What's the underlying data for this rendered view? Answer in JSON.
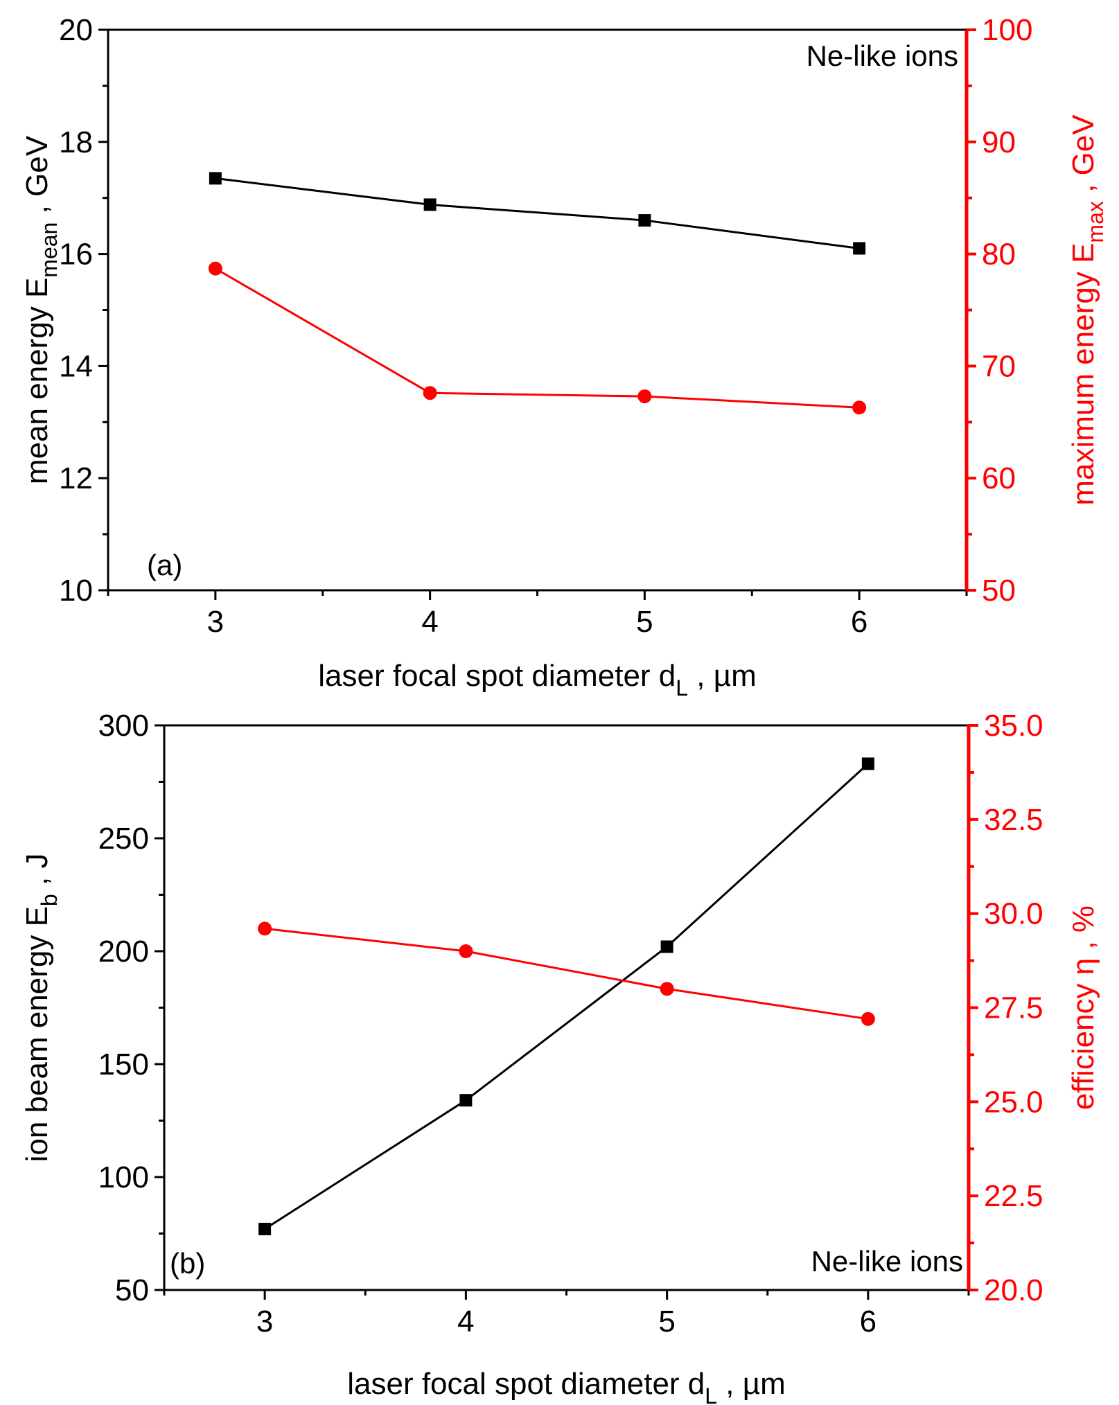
{
  "colors": {
    "primary": "#000000",
    "secondary": "#ff0000"
  },
  "chart_data": [
    {
      "id": "a",
      "type": "line",
      "panel_label": "(a)",
      "annotation": "Ne-like ions",
      "x": [
        3,
        4,
        5,
        6
      ],
      "xlim": [
        2.5,
        6.5
      ],
      "xticks": [
        3,
        4,
        5,
        6
      ],
      "xlabel": {
        "main": "laser focal spot diameter  d",
        "sub": "L",
        "tail": " , µm"
      },
      "ylabel_left": {
        "main": "mean energy E",
        "sub": "mean",
        "tail": " , GeV"
      },
      "ylabel_right": {
        "main": "maximum energy E",
        "sub": "max",
        "tail": " , GeV"
      },
      "ylim_left": [
        10,
        20
      ],
      "yticks_left": [
        10,
        12,
        14,
        16,
        18,
        20
      ],
      "ylim_right": [
        50,
        100
      ],
      "yticks_right": [
        50,
        60,
        70,
        80,
        90,
        100
      ],
      "series": [
        {
          "name": "mean energy",
          "axis": "left",
          "marker": "square",
          "color": "#000000",
          "values": [
            17.35,
            16.88,
            16.6,
            16.1
          ]
        },
        {
          "name": "maximum energy",
          "axis": "right",
          "marker": "circle",
          "color": "#ff0000",
          "values": [
            78.7,
            67.6,
            67.3,
            66.3
          ]
        }
      ]
    },
    {
      "id": "b",
      "type": "line",
      "panel_label": "(b)",
      "annotation": "Ne-like ions",
      "x": [
        3,
        4,
        5,
        6
      ],
      "xlim": [
        2.5,
        6.5
      ],
      "xticks": [
        3,
        4,
        5,
        6
      ],
      "xlabel": {
        "main": "laser focal spot diameter d",
        "sub": "L",
        "tail": " , µm"
      },
      "ylabel_left": {
        "main": "ion  beam energy  E",
        "sub": "b",
        "tail": "  , J"
      },
      "ylabel_right": {
        "main": "efficiency η , %",
        "sub": "",
        "tail": ""
      },
      "ylim_left": [
        50,
        300
      ],
      "yticks_left": [
        50,
        100,
        150,
        200,
        250,
        300
      ],
      "ylim_right": [
        20,
        35
      ],
      "yticks_right": [
        "20.0",
        "22.5",
        "25.0",
        "27.5",
        "30.0",
        "32.5",
        "35.0"
      ],
      "series": [
        {
          "name": "ion beam energy",
          "axis": "left",
          "marker": "square",
          "color": "#000000",
          "values": [
            77,
            134,
            202,
            283
          ]
        },
        {
          "name": "efficiency",
          "axis": "right",
          "marker": "circle",
          "color": "#ff0000",
          "values": [
            29.6,
            29.0,
            28.0,
            27.2
          ]
        }
      ]
    }
  ]
}
